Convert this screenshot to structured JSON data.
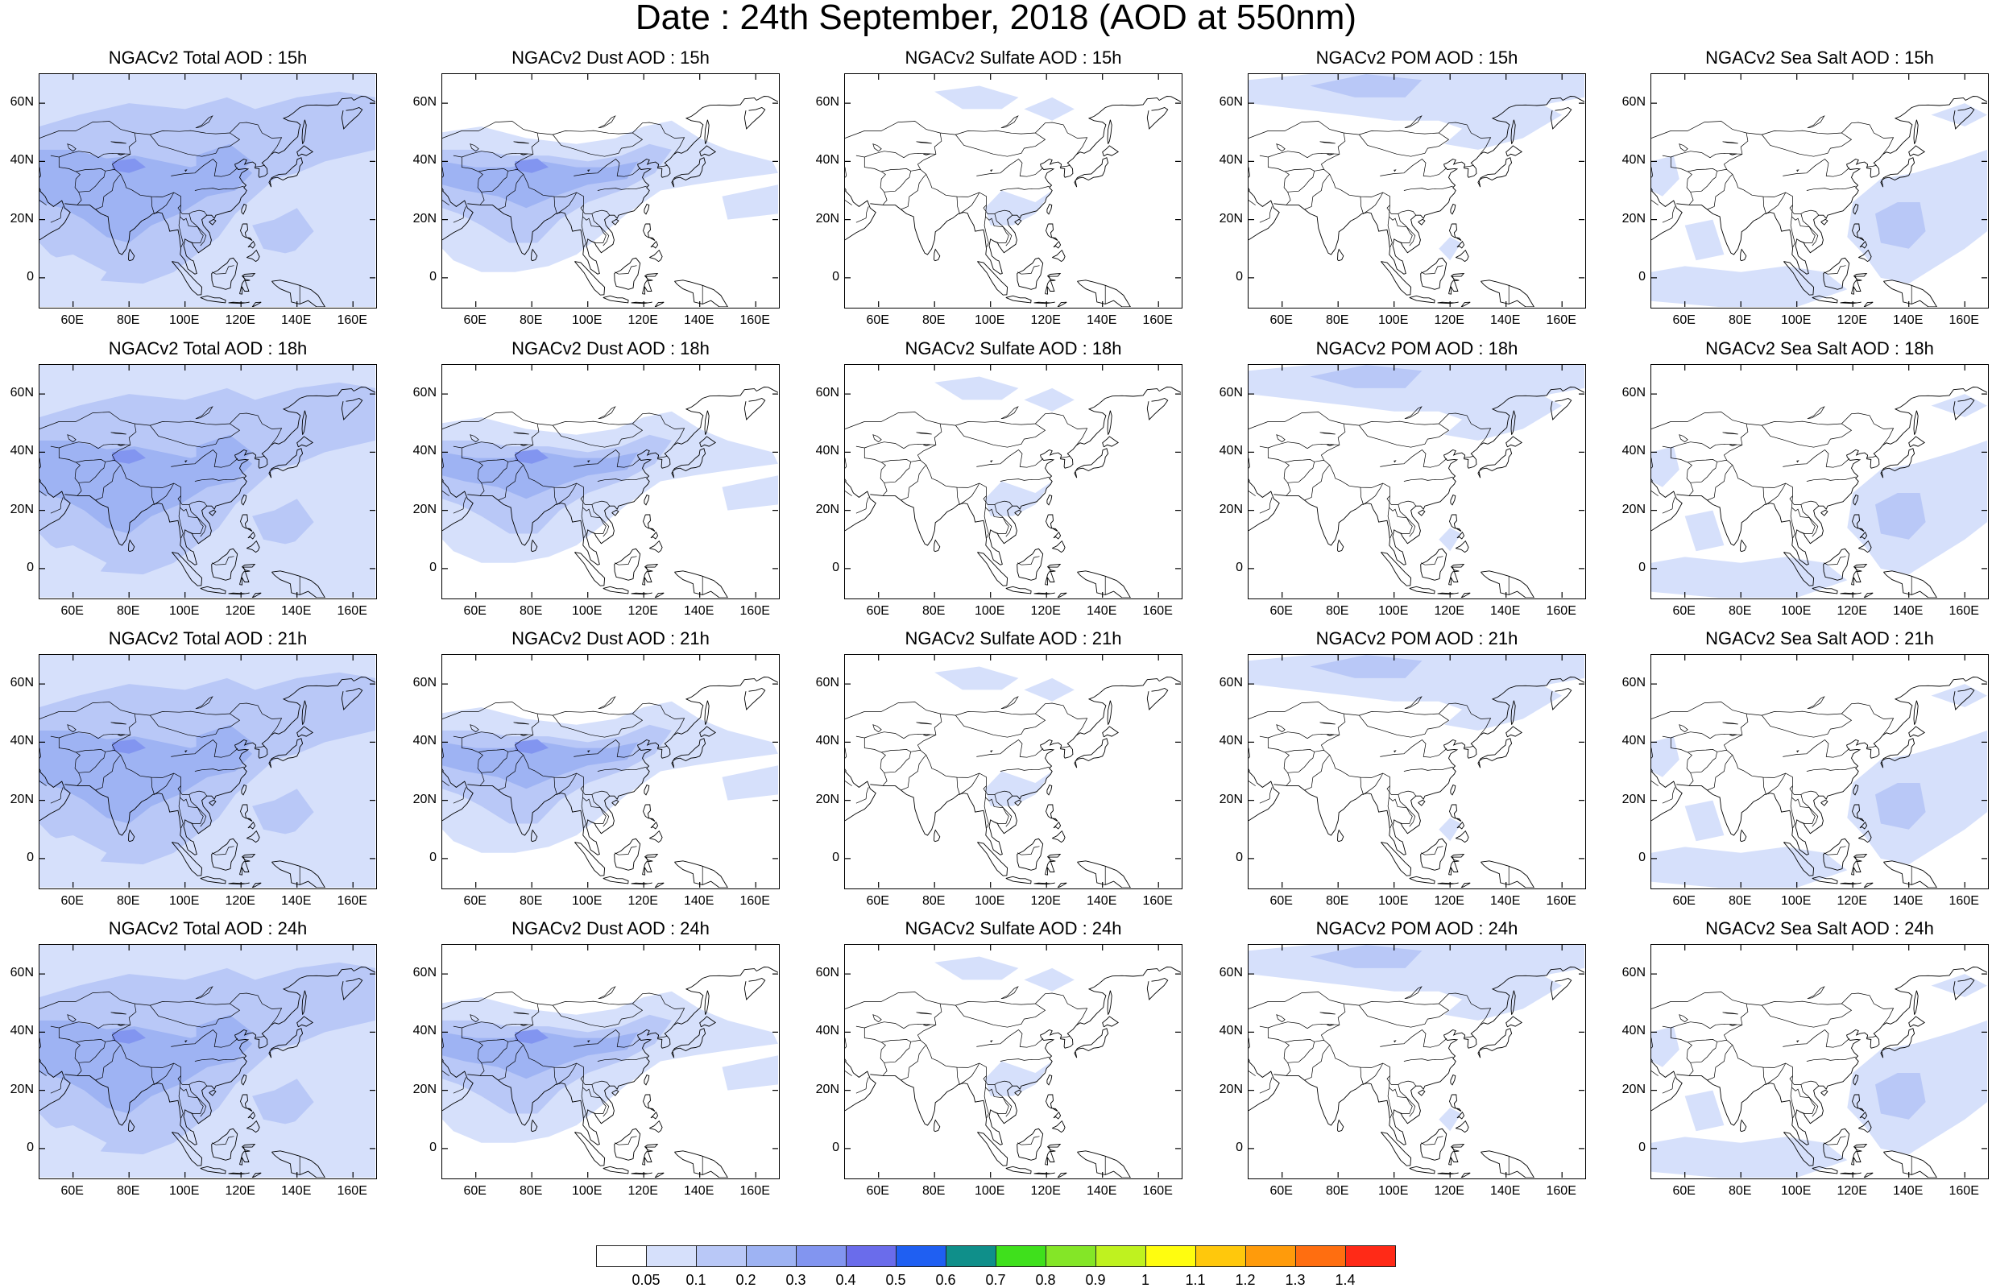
{
  "title": "Date : 24th September, 2018 (AOD at 550nm)",
  "axes": {
    "lon_range": [
      48,
      168
    ],
    "lat_range": [
      -10,
      70
    ],
    "lon_ticks": [
      "60E",
      "80E",
      "100E",
      "120E",
      "140E",
      "160E"
    ],
    "lon_tick_values": [
      60,
      80,
      100,
      120,
      140,
      160
    ],
    "lat_ticks": [
      "60N",
      "40N",
      "20N",
      "0"
    ],
    "lat_tick_values": [
      60,
      40,
      20,
      0
    ]
  },
  "panels": [
    [
      {
        "title": "NGACv2 Total AOD : 15h",
        "species": "total"
      },
      {
        "title": "NGACv2 Dust AOD : 15h",
        "species": "dust"
      },
      {
        "title": "NGACv2 Sulfate AOD : 15h",
        "species": "sulfate"
      },
      {
        "title": "NGACv2 POM AOD : 15h",
        "species": "pom"
      },
      {
        "title": "NGACv2 Sea Salt AOD : 15h",
        "species": "seasalt"
      }
    ],
    [
      {
        "title": "NGACv2 Total AOD : 18h",
        "species": "total"
      },
      {
        "title": "NGACv2 Dust AOD : 18h",
        "species": "dust"
      },
      {
        "title": "NGACv2 Sulfate AOD : 18h",
        "species": "sulfate"
      },
      {
        "title": "NGACv2 POM AOD : 18h",
        "species": "pom"
      },
      {
        "title": "NGACv2 Sea Salt AOD : 18h",
        "species": "seasalt"
      }
    ],
    [
      {
        "title": "NGACv2 Total AOD : 21h",
        "species": "total"
      },
      {
        "title": "NGACv2 Dust AOD : 21h",
        "species": "dust"
      },
      {
        "title": "NGACv2 Sulfate AOD : 21h",
        "species": "sulfate"
      },
      {
        "title": "NGACv2 POM AOD : 21h",
        "species": "pom"
      },
      {
        "title": "NGACv2 Sea Salt AOD : 21h",
        "species": "seasalt"
      }
    ],
    [
      {
        "title": "NGACv2 Total AOD : 24h",
        "species": "total"
      },
      {
        "title": "NGACv2 Dust AOD : 24h",
        "species": "dust"
      },
      {
        "title": "NGACv2 Sulfate AOD : 24h",
        "species": "sulfate"
      },
      {
        "title": "NGACv2 POM AOD : 24h",
        "species": "pom"
      },
      {
        "title": "NGACv2 Sea Salt  AOD : 24h",
        "species": "seasalt"
      }
    ]
  ],
  "colorbar": {
    "labels": [
      "0.05",
      "0.1",
      "0.2",
      "0.3",
      "0.4",
      "0.5",
      "0.6",
      "0.7",
      "0.8",
      "0.9",
      "1",
      "1.1",
      "1.2",
      "1.3",
      "1.4"
    ],
    "colors": [
      "#ffffff",
      "#d6e0fb",
      "#b9c8f7",
      "#9eb3f3",
      "#8295f0",
      "#6a6ceb",
      "#1f5ff2",
      "#0f8f8a",
      "#3fe01c",
      "#84e627",
      "#bff21f",
      "#fffd0f",
      "#ffc80c",
      "#ff9b0b",
      "#ff6e10",
      "#ff2a17"
    ]
  },
  "colors": {
    "light": "#d6e0fb",
    "mid": "#b9c8f7",
    "dark": "#9eb3f3",
    "darker": "#8295f0",
    "coast": "#000000"
  }
}
